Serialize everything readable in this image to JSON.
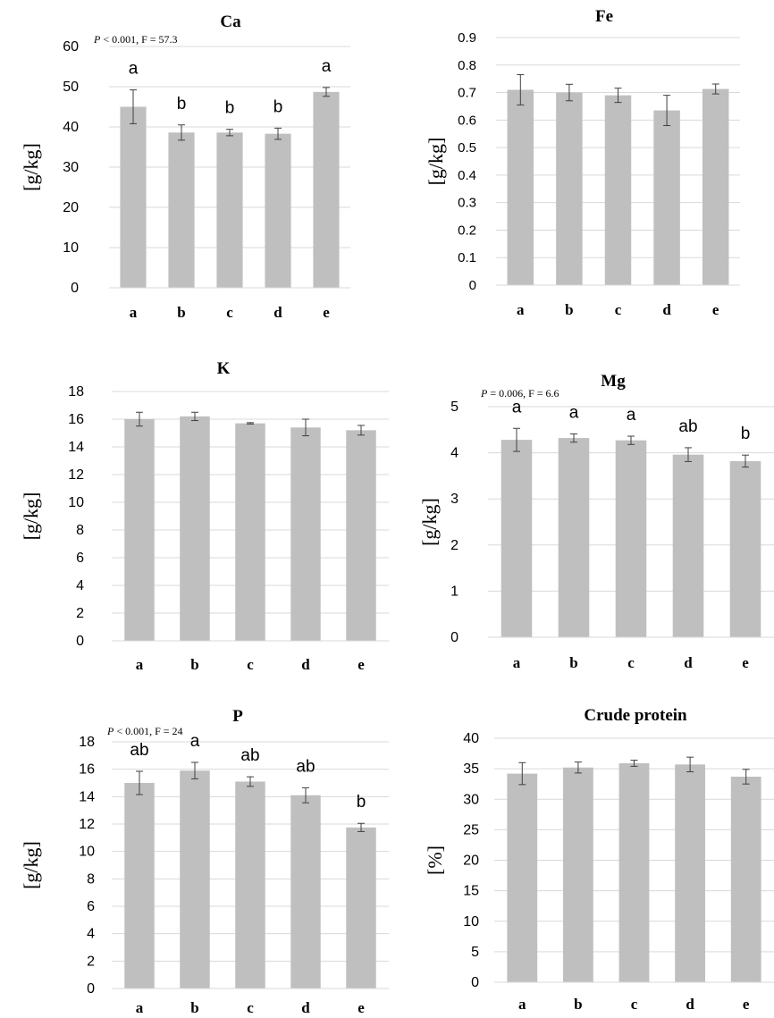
{
  "colors": {
    "bar": "#bfbfbf",
    "grid": "#d9d9d9",
    "axis": "#d9d9d9",
    "text": "#000000",
    "errorbar": "#404040"
  },
  "chart_data": [
    {
      "type": "bar",
      "title": "Ca",
      "ylabel": "[g/kg]",
      "annotation": "P < 0.001, F = 57.3",
      "categories": [
        "a",
        "b",
        "c",
        "d",
        "e"
      ],
      "values": [
        45.0,
        38.6,
        38.6,
        38.3,
        48.7
      ],
      "errors": [
        4.2,
        1.9,
        0.8,
        1.4,
        1.1
      ],
      "letters": [
        "a",
        "b",
        "b",
        "b",
        "a"
      ],
      "ylim": [
        0,
        60
      ],
      "yticks": [
        "0",
        "10",
        "20",
        "30",
        "40",
        "50",
        "60"
      ],
      "grid": true
    },
    {
      "type": "bar",
      "title": "Fe",
      "ylabel": "[g/kg]",
      "annotation": "",
      "categories": [
        "a",
        "b",
        "c",
        "d",
        "e"
      ],
      "values": [
        0.71,
        0.7,
        0.69,
        0.635,
        0.713
      ],
      "errors": [
        0.055,
        0.03,
        0.026,
        0.055,
        0.018
      ],
      "letters": [],
      "ylim": [
        0,
        0.9
      ],
      "yticks": [
        "0",
        "0.1",
        "0.2",
        "0.3",
        "0.4",
        "0.5",
        "0.6",
        "0.7",
        "0.8",
        "0.9"
      ],
      "grid": true
    },
    {
      "type": "bar",
      "title": "K",
      "ylabel": "[g/kg]",
      "annotation": "",
      "categories": [
        "a",
        "b",
        "c",
        "d",
        "e"
      ],
      "values": [
        16.0,
        16.2,
        15.7,
        15.4,
        15.2
      ],
      "errors": [
        0.5,
        0.3,
        0.05,
        0.6,
        0.35
      ],
      "letters": [],
      "ylim": [
        0,
        18
      ],
      "yticks": [
        "0",
        "2",
        "4",
        "6",
        "8",
        "10",
        "12",
        "14",
        "16",
        "18"
      ],
      "grid": true
    },
    {
      "type": "bar",
      "title": "Mg",
      "ylabel": "[g/kg]",
      "annotation": "P = 0.006, F = 6.6",
      "categories": [
        "a",
        "b",
        "c",
        "d",
        "e"
      ],
      "values": [
        4.28,
        4.32,
        4.27,
        3.96,
        3.82
      ],
      "errors": [
        0.25,
        0.09,
        0.09,
        0.15,
        0.13
      ],
      "letters": [
        "a",
        "a",
        "a",
        "ab",
        "b"
      ],
      "ylim": [
        0,
        5
      ],
      "yticks": [
        "0",
        "1",
        "2",
        "3",
        "4",
        "5"
      ],
      "grid": true
    },
    {
      "type": "bar",
      "title": "P",
      "ylabel": "[g/kg]",
      "annotation": "P < 0.001, F = 24",
      "categories": [
        "a",
        "b",
        "c",
        "d",
        "e"
      ],
      "values": [
        15.0,
        15.9,
        15.1,
        14.1,
        11.75
      ],
      "errors": [
        0.85,
        0.6,
        0.35,
        0.55,
        0.3
      ],
      "letters": [
        "ab",
        "a",
        "ab",
        "ab",
        "b"
      ],
      "ylim": [
        0,
        18
      ],
      "yticks": [
        "0",
        "2",
        "4",
        "6",
        "8",
        "10",
        "12",
        "14",
        "16",
        "18"
      ],
      "grid": true
    },
    {
      "type": "bar",
      "title": "Crude protein",
      "ylabel": "[%]",
      "annotation": "",
      "categories": [
        "a",
        "b",
        "c",
        "d",
        "e"
      ],
      "values": [
        34.2,
        35.2,
        35.9,
        35.7,
        33.7
      ],
      "errors": [
        1.8,
        0.9,
        0.5,
        1.2,
        1.2
      ],
      "letters": [],
      "ylim": [
        0,
        40
      ],
      "yticks": [
        "0",
        "5",
        "10",
        "15",
        "20",
        "25",
        "30",
        "35",
        "40"
      ],
      "grid": true
    }
  ]
}
